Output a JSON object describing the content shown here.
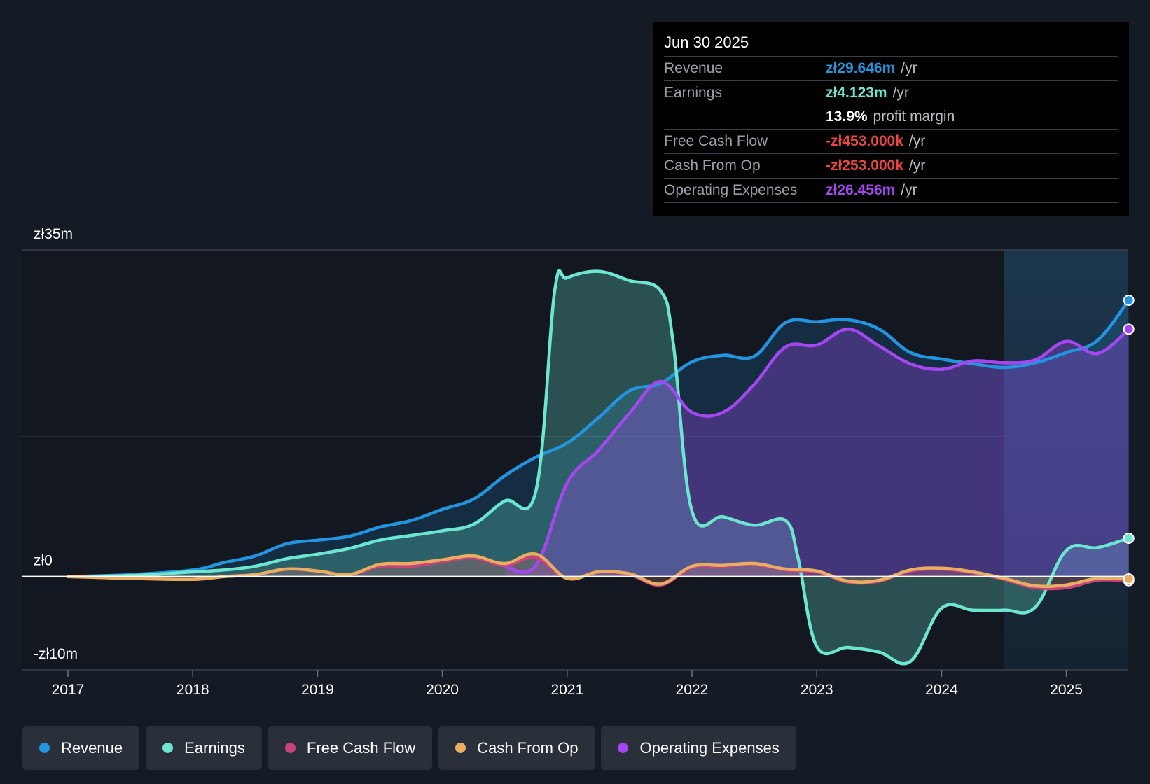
{
  "colors": {
    "revenue": "#2394df",
    "earnings": "#6ce6d0",
    "fcf": "#c8437c",
    "cfo": "#e9ad62",
    "opex": "#a547f0",
    "negative": "#ef4444"
  },
  "tooltip": {
    "date": "Jun 30 2025",
    "rows": [
      {
        "label": "Revenue",
        "value": "zł29.646m",
        "unit": "/yr"
      },
      {
        "label": "Earnings",
        "value": "zł4.123m",
        "unit": "/yr"
      },
      {
        "margin_value": "13.9%",
        "margin_label": "profit margin"
      },
      {
        "label": "Free Cash Flow",
        "value": "-zł453.000k",
        "unit": "/yr"
      },
      {
        "label": "Cash From Op",
        "value": "-zł253.000k",
        "unit": "/yr"
      },
      {
        "label": "Operating Expenses",
        "value": "zł26.456m",
        "unit": "/yr"
      }
    ]
  },
  "legend": [
    {
      "label": "Revenue",
      "color": "#2394df"
    },
    {
      "label": "Earnings",
      "color": "#6ce6d0"
    },
    {
      "label": "Free Cash Flow",
      "color": "#c8437c"
    },
    {
      "label": "Cash From Op",
      "color": "#e9ad62"
    },
    {
      "label": "Operating Expenses",
      "color": "#a547f0"
    }
  ],
  "chart_data": {
    "type": "area",
    "title": "",
    "xlabel": "",
    "ylabel": "",
    "ylim": [
      -10,
      35
    ],
    "y_axis_labels": [
      "zł35m",
      "zł0",
      "-zł10m"
    ],
    "x_ticks": [
      "2017",
      "2018",
      "2019",
      "2020",
      "2021",
      "2022",
      "2023",
      "2024",
      "2025"
    ],
    "x_range": [
      2016.6,
      2025.5
    ],
    "highlight_from": 2024.5,
    "series": [
      {
        "name": "Revenue",
        "key": "revenue",
        "values": [
          [
            2017.0,
            0.0
          ],
          [
            2017.5,
            0.2
          ],
          [
            2018.0,
            0.7
          ],
          [
            2018.25,
            1.5
          ],
          [
            2018.5,
            2.2
          ],
          [
            2018.75,
            3.5
          ],
          [
            2019.0,
            3.9
          ],
          [
            2019.25,
            4.3
          ],
          [
            2019.5,
            5.3
          ],
          [
            2019.75,
            6.0
          ],
          [
            2020.0,
            7.2
          ],
          [
            2020.25,
            8.3
          ],
          [
            2020.5,
            10.8
          ],
          [
            2020.75,
            12.8
          ],
          [
            2021.0,
            14.3
          ],
          [
            2021.25,
            17.0
          ],
          [
            2021.5,
            19.9
          ],
          [
            2021.75,
            20.7
          ],
          [
            2022.0,
            23.0
          ],
          [
            2022.25,
            23.7
          ],
          [
            2022.5,
            23.6
          ],
          [
            2022.75,
            27.2
          ],
          [
            2023.0,
            27.3
          ],
          [
            2023.25,
            27.5
          ],
          [
            2023.5,
            26.5
          ],
          [
            2023.75,
            24.0
          ],
          [
            2024.0,
            23.3
          ],
          [
            2024.25,
            22.8
          ],
          [
            2024.5,
            22.4
          ],
          [
            2024.75,
            22.9
          ],
          [
            2025.0,
            24.0
          ],
          [
            2025.25,
            25.3
          ],
          [
            2025.5,
            29.6
          ]
        ]
      },
      {
        "name": "Earnings",
        "key": "earnings",
        "values": [
          [
            2017.0,
            0.0
          ],
          [
            2017.5,
            0.1
          ],
          [
            2018.0,
            0.5
          ],
          [
            2018.25,
            0.7
          ],
          [
            2018.5,
            1.1
          ],
          [
            2018.75,
            1.9
          ],
          [
            2019.0,
            2.4
          ],
          [
            2019.25,
            3.0
          ],
          [
            2019.5,
            3.9
          ],
          [
            2019.75,
            4.4
          ],
          [
            2020.0,
            4.9
          ],
          [
            2020.25,
            5.6
          ],
          [
            2020.5,
            8.1
          ],
          [
            2020.75,
            9.2
          ],
          [
            2020.9,
            30.6
          ],
          [
            2021.0,
            32.0
          ],
          [
            2021.25,
            32.7
          ],
          [
            2021.5,
            31.7
          ],
          [
            2021.75,
            30.6
          ],
          [
            2021.85,
            25.0
          ],
          [
            2022.0,
            7.0
          ],
          [
            2022.25,
            6.4
          ],
          [
            2022.5,
            5.5
          ],
          [
            2022.75,
            6.0
          ],
          [
            2022.85,
            2.0
          ],
          [
            2023.0,
            -7.5
          ],
          [
            2023.25,
            -7.6
          ],
          [
            2023.5,
            -8.1
          ],
          [
            2023.75,
            -9.1
          ],
          [
            2024.0,
            -3.4
          ],
          [
            2024.25,
            -3.6
          ],
          [
            2024.5,
            -3.6
          ],
          [
            2024.75,
            -3.3
          ],
          [
            2025.0,
            2.8
          ],
          [
            2025.25,
            3.1
          ],
          [
            2025.5,
            4.1
          ]
        ]
      },
      {
        "name": "Free Cash Flow",
        "key": "fcf",
        "values": [
          [
            2017.0,
            0.0
          ],
          [
            2017.5,
            -0.2
          ],
          [
            2018.0,
            -0.3
          ],
          [
            2018.25,
            0.0
          ],
          [
            2018.5,
            0.2
          ],
          [
            2018.75,
            0.8
          ],
          [
            2019.0,
            0.6
          ],
          [
            2019.25,
            0.2
          ],
          [
            2019.5,
            1.1
          ],
          [
            2019.75,
            1.1
          ],
          [
            2020.0,
            1.6
          ],
          [
            2020.25,
            2.0
          ],
          [
            2020.5,
            1.2
          ],
          [
            2020.75,
            2.0
          ],
          [
            2021.0,
            -0.2
          ],
          [
            2021.25,
            0.5
          ],
          [
            2021.5,
            0.2
          ],
          [
            2021.75,
            -0.9
          ],
          [
            2022.0,
            1.0
          ],
          [
            2022.25,
            1.1
          ],
          [
            2022.5,
            1.3
          ],
          [
            2022.75,
            0.7
          ],
          [
            2023.0,
            0.5
          ],
          [
            2023.25,
            -0.6
          ],
          [
            2023.5,
            -0.5
          ],
          [
            2023.75,
            0.6
          ],
          [
            2024.0,
            0.8
          ],
          [
            2024.25,
            0.4
          ],
          [
            2024.5,
            -0.3
          ],
          [
            2024.75,
            -1.2
          ],
          [
            2025.0,
            -1.2
          ],
          [
            2025.25,
            -0.4
          ],
          [
            2025.5,
            -0.45
          ]
        ]
      },
      {
        "name": "Cash From Op",
        "key": "cfo",
        "values": [
          [
            2017.0,
            0.0
          ],
          [
            2017.5,
            -0.2
          ],
          [
            2018.0,
            -0.3
          ],
          [
            2018.25,
            0.0
          ],
          [
            2018.5,
            0.2
          ],
          [
            2018.75,
            0.8
          ],
          [
            2019.0,
            0.6
          ],
          [
            2019.25,
            0.2
          ],
          [
            2019.5,
            1.3
          ],
          [
            2019.75,
            1.4
          ],
          [
            2020.0,
            1.8
          ],
          [
            2020.25,
            2.2
          ],
          [
            2020.5,
            1.4
          ],
          [
            2020.75,
            2.4
          ],
          [
            2021.0,
            -0.2
          ],
          [
            2021.25,
            0.5
          ],
          [
            2021.5,
            0.3
          ],
          [
            2021.75,
            -0.8
          ],
          [
            2022.0,
            1.1
          ],
          [
            2022.25,
            1.2
          ],
          [
            2022.5,
            1.4
          ],
          [
            2022.75,
            0.8
          ],
          [
            2023.0,
            0.6
          ],
          [
            2023.25,
            -0.5
          ],
          [
            2023.5,
            -0.4
          ],
          [
            2023.75,
            0.7
          ],
          [
            2024.0,
            0.9
          ],
          [
            2024.25,
            0.5
          ],
          [
            2024.5,
            -0.2
          ],
          [
            2024.75,
            -1.0
          ],
          [
            2025.0,
            -0.9
          ],
          [
            2025.25,
            -0.2
          ],
          [
            2025.5,
            -0.25
          ]
        ]
      },
      {
        "name": "Operating Expenses",
        "key": "opex",
        "values": [
          [
            2020.5,
            1.1
          ],
          [
            2020.75,
            1.2
          ],
          [
            2021.0,
            10.0
          ],
          [
            2021.25,
            13.5
          ],
          [
            2021.5,
            17.5
          ],
          [
            2021.75,
            20.9
          ],
          [
            2022.0,
            17.6
          ],
          [
            2022.25,
            17.6
          ],
          [
            2022.5,
            20.6
          ],
          [
            2022.75,
            24.6
          ],
          [
            2023.0,
            24.8
          ],
          [
            2023.25,
            26.5
          ],
          [
            2023.5,
            24.7
          ],
          [
            2023.75,
            22.8
          ],
          [
            2024.0,
            22.2
          ],
          [
            2024.25,
            23.1
          ],
          [
            2024.5,
            22.9
          ],
          [
            2024.75,
            23.2
          ],
          [
            2025.0,
            25.2
          ],
          [
            2025.25,
            23.9
          ],
          [
            2025.5,
            26.5
          ]
        ]
      }
    ]
  }
}
